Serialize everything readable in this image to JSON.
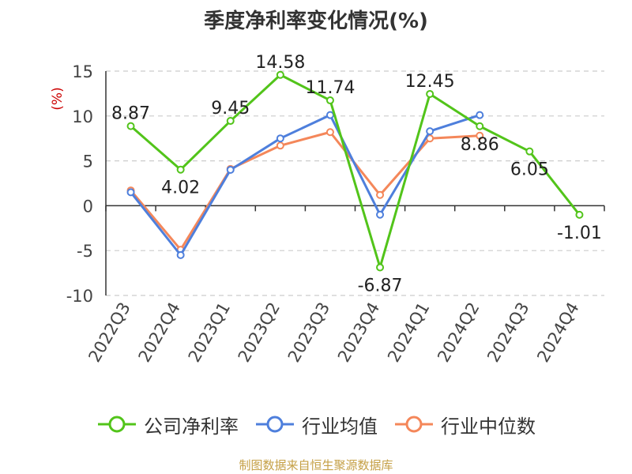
{
  "chart_data": {
    "type": "line",
    "title": "季度净利率变化情况(%)",
    "ylabel": "(%)",
    "xlabel": "",
    "categories": [
      "2022Q3",
      "2022Q4",
      "2023Q1",
      "2023Q2",
      "2023Q3",
      "2023Q4",
      "2024Q1",
      "2024Q2",
      "2024Q3",
      "2024Q4"
    ],
    "ylim": [
      -10,
      15
    ],
    "yticks": [
      15,
      10,
      5,
      0,
      -5,
      -10
    ],
    "grid": true,
    "legend_position": "bottom",
    "series": [
      {
        "name": "公司净利率",
        "color": "#52c41a",
        "values": [
          8.87,
          4.02,
          9.45,
          14.58,
          11.74,
          -6.87,
          12.45,
          8.86,
          6.05,
          -1.01
        ],
        "labels": [
          "8.87",
          "4.02",
          "9.45",
          "14.58",
          "11.74",
          "-6.87",
          "12.45",
          "8.86",
          "6.05",
          "-1.01"
        ]
      },
      {
        "name": "行业均值",
        "color": "#4e7fdc",
        "values": [
          1.5,
          -5.5,
          4.0,
          7.5,
          10.1,
          -1.0,
          8.3,
          10.1,
          null,
          null
        ]
      },
      {
        "name": "行业中位数",
        "color": "#f4875a",
        "values": [
          1.7,
          -4.9,
          4.1,
          6.7,
          8.2,
          1.2,
          7.5,
          7.8,
          null,
          null
        ]
      }
    ]
  },
  "footer": {
    "source": "制图数据来自恒生聚源数据库"
  }
}
